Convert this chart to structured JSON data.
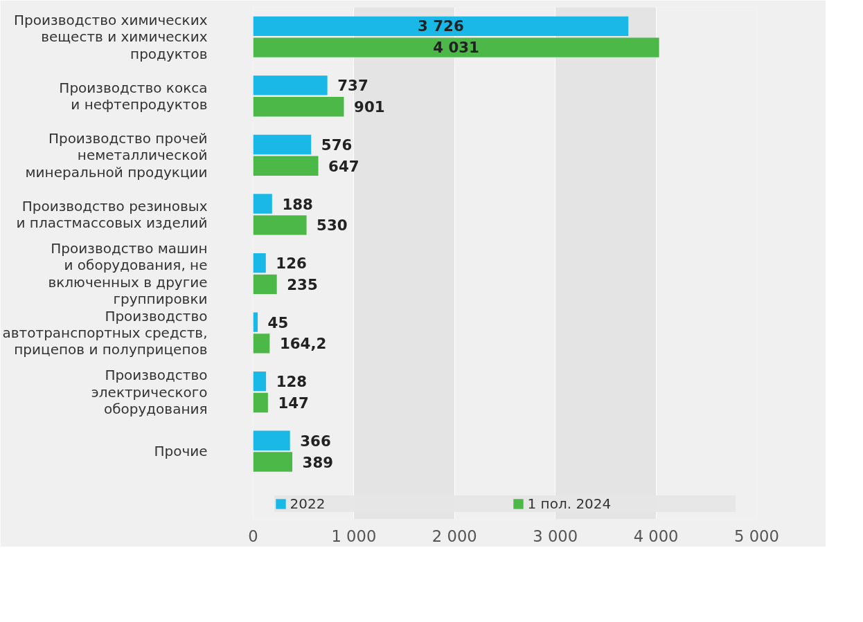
{
  "chart_data": {
    "type": "bar",
    "orientation": "horizontal",
    "categories": [
      "Производство химических\nвеществ и химических\nпродуктов",
      "Производство кокса\nи нефтепродуктов",
      "Производство прочей\nнеметаллической\nминеральной продукции",
      "Производство резиновых\nи пластмассовых изделий",
      "Производство машин\nи оборудования, не\nвключенных в другие\nгруппировки",
      "Производство\nавтотранспортных средств,\nприцепов и полуприцепов",
      "Производство\nэлектрического\nоборудования",
      "Прочие"
    ],
    "series": [
      {
        "name": "2022",
        "color": "#1ab8e6",
        "values": [
          3726,
          737,
          576,
          188,
          126,
          45,
          128,
          366
        ],
        "value_labels": [
          "3 726",
          "737",
          "576",
          "188",
          "126",
          "45",
          "128",
          "366"
        ]
      },
      {
        "name": "1 пол. 2024",
        "color": "#4cb848",
        "values": [
          4031,
          901,
          647,
          530,
          235,
          164.2,
          147,
          389
        ],
        "value_labels": [
          "4 031",
          "901",
          "647",
          "530",
          "235",
          "164,2",
          "147",
          "389"
        ]
      }
    ],
    "xlim": [
      0,
      5000
    ],
    "xticks": [
      0,
      {
        "value": 1000,
        "label": "1 000"
      },
      {
        "value": 2000,
        "label": "2 000"
      },
      {
        "value": 3000,
        "label": "3 000"
      },
      {
        "value": 4000,
        "label": "4 000"
      },
      {
        "value": 5000,
        "label": "5 000"
      }
    ],
    "grid": "x",
    "legend": "bottom"
  }
}
